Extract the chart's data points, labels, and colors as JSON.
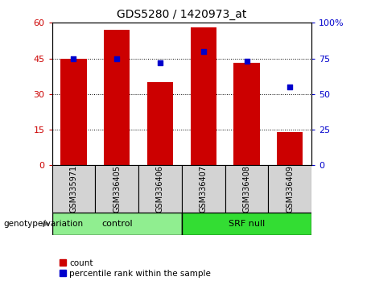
{
  "title": "GDS5280 / 1420973_at",
  "samples": [
    "GSM335971",
    "GSM336405",
    "GSM336406",
    "GSM336407",
    "GSM336408",
    "GSM336409"
  ],
  "counts": [
    45,
    57,
    35,
    58,
    43,
    14
  ],
  "percentiles": [
    75,
    75,
    72,
    80,
    73,
    55
  ],
  "bar_color": "#cc0000",
  "dot_color": "#0000cc",
  "left_ylim": [
    0,
    60
  ],
  "right_ylim": [
    0,
    100
  ],
  "left_yticks": [
    0,
    15,
    30,
    45,
    60
  ],
  "right_yticks": [
    0,
    25,
    50,
    75,
    100
  ],
  "right_yticklabels": [
    "0",
    "25",
    "50",
    "75",
    "100%"
  ],
  "control_color": "#90ee90",
  "srf_color": "#33dd33",
  "label_bg_color": "#d3d3d3",
  "legend_count_label": "count",
  "legend_pct_label": "percentile rank within the sample",
  "genotype_label": "genotype/variation",
  "n_control": 3,
  "n_srf": 3
}
